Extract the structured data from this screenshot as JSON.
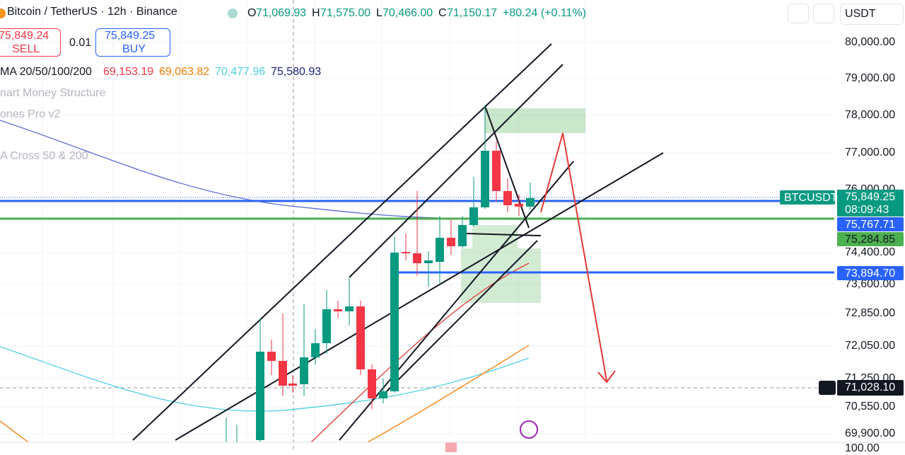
{
  "header": {
    "symbol": "Bitcoin / TetherUS · 12h · Binance",
    "ohlc": [
      {
        "label": "O",
        "value": "71,069.93"
      },
      {
        "label": "H",
        "value": "71,575.00"
      },
      {
        "label": "L",
        "value": "70,466.00"
      },
      {
        "label": "C",
        "value": "71,150.17"
      }
    ],
    "change": "+80.24 (+0.11%)",
    "currency": "USDT"
  },
  "trade": {
    "sell_price": "75,849.24",
    "sell": "SELL",
    "quantity": "0.01",
    "buy_price": "75,849.25",
    "buy": "BUY"
  },
  "indicators": {
    "ma_label": "MA 20/50/100/200",
    "ma_values": [
      "69,153.19",
      "69,063.82",
      "70,477.96",
      "75,580.93"
    ],
    "hidden": [
      "nart Money Structure",
      "ones Pro v2",
      "A Cross 50 & 200"
    ]
  },
  "price_axis": [
    "80,000.00",
    "79,000.00",
    "78,000.00",
    "77,000.00",
    "76,000.00",
    "74,400.00",
    "73,600.00",
    "72,850.00",
    "72,050.00",
    "71,250.00",
    "70,550.00",
    "69,900.00",
    "100.00"
  ],
  "badges": {
    "symbol": "BTCUSDT",
    "last_price": "75,849.25",
    "countdown": "08:09:43",
    "line_1": "75,767.71",
    "line_2": "75,284.85",
    "line_3": "73,894.70",
    "crosshair": "71,028.10"
  }
}
